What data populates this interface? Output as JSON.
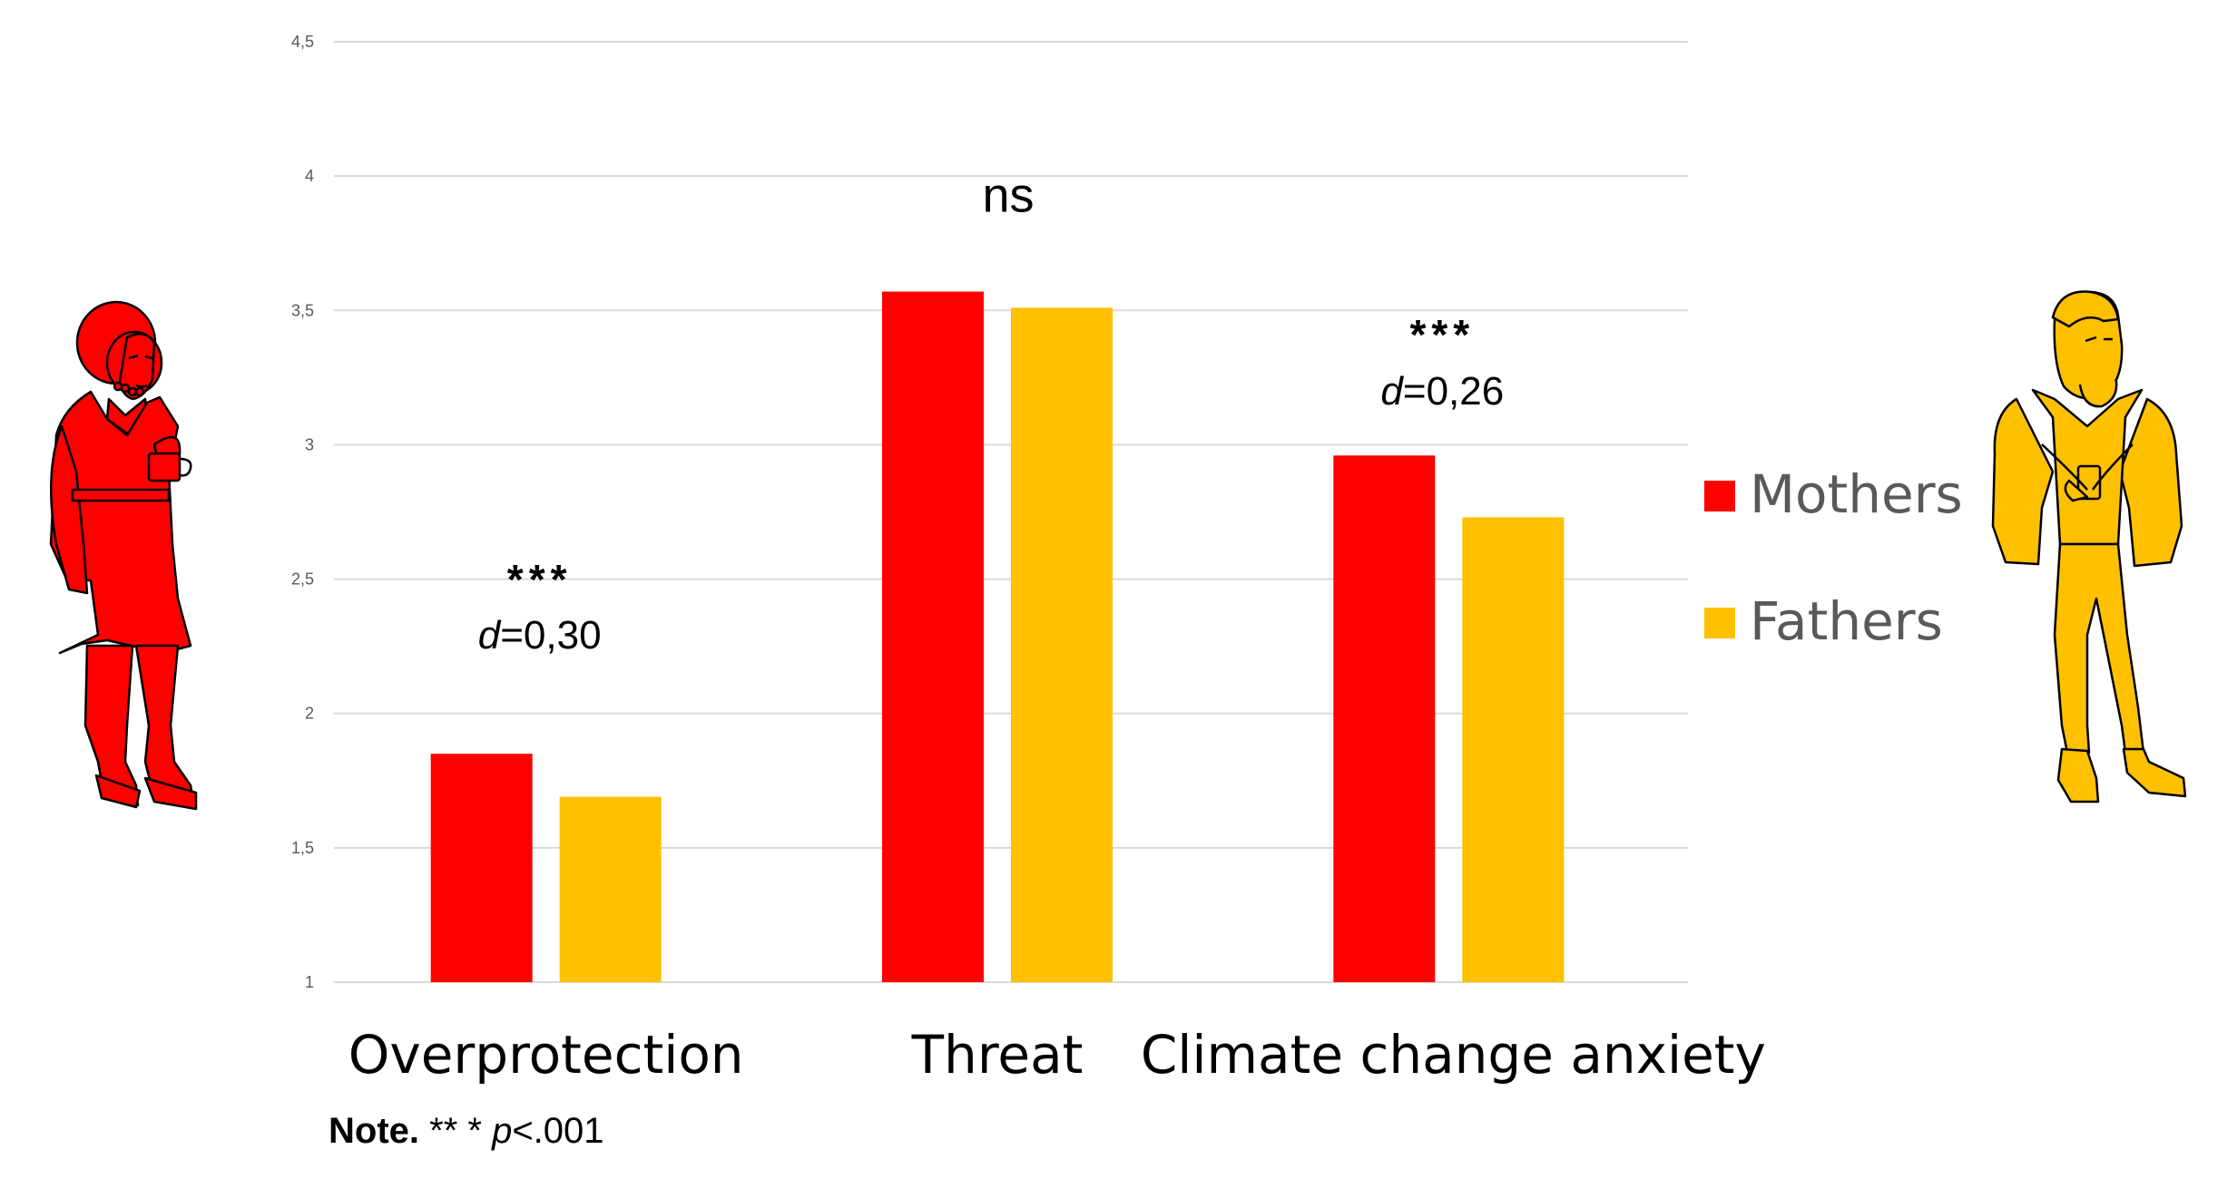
{
  "chart_data": {
    "type": "bar",
    "categories": [
      "Overprotection",
      "Threat",
      "Climate change anxiety"
    ],
    "series": [
      {
        "name": "Mothers",
        "color": "#ff0000",
        "values": [
          1.85,
          3.57,
          2.96
        ]
      },
      {
        "name": "Fathers",
        "color": "#ffc000",
        "values": [
          1.69,
          3.51,
          2.73
        ]
      }
    ],
    "ylim": [
      1,
      4.5
    ],
    "yticks": [
      "1",
      "1,5",
      "2",
      "2,5",
      "3",
      "3,5",
      "4",
      "4,5"
    ],
    "ytick_values": [
      1,
      1.5,
      2,
      2.5,
      3,
      3.5,
      4,
      4.5
    ],
    "grid": true,
    "legend": "right",
    "annotations": [
      {
        "category": "Overprotection",
        "stars": "***",
        "effect_label": "d",
        "effect_value": "=0,30"
      },
      {
        "category": "Threat",
        "text": "ns"
      },
      {
        "category": "Climate change anxiety",
        "stars": "***",
        "effect_label": "d",
        "effect_value": "=0,26"
      }
    ]
  },
  "note": {
    "label": "Note.",
    "stars": "** *",
    "p_label": "p",
    "p_value": "<.001"
  },
  "figures": {
    "left": "mother-figure",
    "right": "father-figure",
    "left_color": "#ff0000",
    "right_color": "#ffc000"
  }
}
